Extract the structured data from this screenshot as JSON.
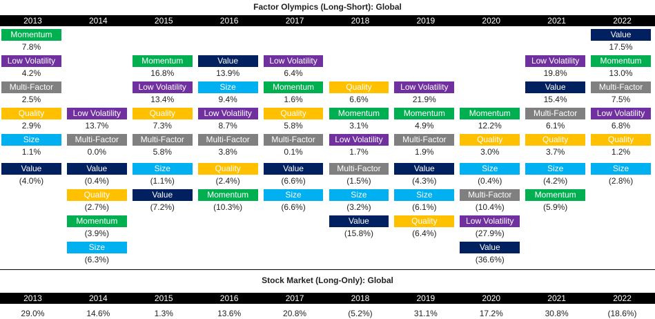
{
  "title": "Factor Olympics (Long-Short): Global",
  "market_title": "Stock Market (Long-Only): Global",
  "years": [
    "2013",
    "2014",
    "2015",
    "2016",
    "2017",
    "2018",
    "2019",
    "2020",
    "2021",
    "2022"
  ],
  "factor_colors": {
    "Momentum": "#00b050",
    "Low Volatility": "#7030a0",
    "Multi-Factor": "#808080",
    "Quality": "#ffc000",
    "Size": "#00b0f0",
    "Value": "#002060"
  },
  "chart_data": [
    {
      "type": "table",
      "title": "Factor Olympics (Long-Short): Global",
      "columns": [
        {
          "year": "2013",
          "entries": [
            {
              "factor": "Momentum",
              "value": "7.8%"
            },
            {
              "factor": "Low Volatility",
              "value": "4.2%"
            },
            {
              "factor": "Multi-Factor",
              "value": "2.5%"
            },
            {
              "factor": "Quality",
              "value": "2.9%"
            },
            {
              "factor": "Size",
              "value": "1.1%"
            },
            {
              "factor": "Value",
              "value": "(4.0%)"
            }
          ]
        },
        {
          "year": "2014",
          "entries": [
            {
              "factor": "Low Volatility",
              "value": "13.7%"
            },
            {
              "factor": "Multi-Factor",
              "value": "0.0%"
            },
            {
              "factor": "Value",
              "value": "(0.4%)"
            },
            {
              "factor": "Quality",
              "value": "(2.7%)"
            },
            {
              "factor": "Momentum",
              "value": "(3.9%)"
            },
            {
              "factor": "Size",
              "value": "(6.3%)"
            }
          ]
        },
        {
          "year": "2015",
          "entries": [
            {
              "factor": "Momentum",
              "value": "16.8%"
            },
            {
              "factor": "Low Volatility",
              "value": "13.4%"
            },
            {
              "factor": "Quality",
              "value": "7.3%"
            },
            {
              "factor": "Multi-Factor",
              "value": "5.8%"
            },
            {
              "factor": "Size",
              "value": "(1.1%)"
            },
            {
              "factor": "Value",
              "value": "(7.2%)"
            }
          ]
        },
        {
          "year": "2016",
          "entries": [
            {
              "factor": "Value",
              "value": "13.9%"
            },
            {
              "factor": "Size",
              "value": "9.4%"
            },
            {
              "factor": "Low Volatility",
              "value": "8.7%"
            },
            {
              "factor": "Multi-Factor",
              "value": "3.8%"
            },
            {
              "factor": "Quality",
              "value": "(2.4%)"
            },
            {
              "factor": "Momentum",
              "value": "(10.3%)"
            }
          ]
        },
        {
          "year": "2017",
          "entries": [
            {
              "factor": "Low Volatility",
              "value": "6.4%"
            },
            {
              "factor": "Momentum",
              "value": "1.6%"
            },
            {
              "factor": "Quality",
              "value": "5.8%"
            },
            {
              "factor": "Multi-Factor",
              "value": "0.1%"
            },
            {
              "factor": "Value",
              "value": "(6.6%)"
            },
            {
              "factor": "Size",
              "value": "(6.6%)"
            }
          ]
        },
        {
          "year": "2018",
          "entries": [
            {
              "factor": "Quality",
              "value": "6.6%"
            },
            {
              "factor": "Momentum",
              "value": "3.1%"
            },
            {
              "factor": "Low Volatility",
              "value": "1.7%"
            },
            {
              "factor": "Multi-Factor",
              "value": "(1.5%)"
            },
            {
              "factor": "Size",
              "value": "(3.2%)"
            },
            {
              "factor": "Value",
              "value": "(15.8%)"
            }
          ]
        },
        {
          "year": "2019",
          "entries": [
            {
              "factor": "Low Volatility",
              "value": "21.9%"
            },
            {
              "factor": "Momentum",
              "value": "4.9%"
            },
            {
              "factor": "Multi-Factor",
              "value": "1.9%"
            },
            {
              "factor": "Value",
              "value": "(4.3%)"
            },
            {
              "factor": "Size",
              "value": "(6.1%)"
            },
            {
              "factor": "Quality",
              "value": "(6.4%)"
            }
          ]
        },
        {
          "year": "2020",
          "entries": [
            {
              "factor": "Momentum",
              "value": "12.2%"
            },
            {
              "factor": "Quality",
              "value": "3.0%"
            },
            {
              "factor": "Size",
              "value": "(0.4%)"
            },
            {
              "factor": "Multi-Factor",
              "value": "(10.4%)"
            },
            {
              "factor": "Low Volatility",
              "value": "(27.9%)"
            },
            {
              "factor": "Value",
              "value": "(36.6%)"
            }
          ]
        },
        {
          "year": "2021",
          "entries": [
            {
              "factor": "Low Volatility",
              "value": "19.8%"
            },
            {
              "factor": "Value",
              "value": "15.4%"
            },
            {
              "factor": "Multi-Factor",
              "value": "6.1%"
            },
            {
              "factor": "Quality",
              "value": "3.7%"
            },
            {
              "factor": "Size",
              "value": "(4.2%)"
            },
            {
              "factor": "Momentum",
              "value": "(5.9%)"
            }
          ]
        },
        {
          "year": "2022",
          "entries": [
            {
              "factor": "Value",
              "value": "17.5%"
            },
            {
              "factor": "Momentum",
              "value": "13.0%"
            },
            {
              "factor": "Multi-Factor",
              "value": "7.5%"
            },
            {
              "factor": "Low Volatility",
              "value": "6.8%"
            },
            {
              "factor": "Quality",
              "value": "1.2%"
            },
            {
              "factor": "Size",
              "value": "(2.8%)"
            }
          ]
        }
      ]
    },
    {
      "type": "table",
      "title": "Stock Market (Long-Only): Global",
      "categories": [
        "2013",
        "2014",
        "2015",
        "2016",
        "2017",
        "2018",
        "2019",
        "2020",
        "2021",
        "2022"
      ],
      "values": [
        "29.0%",
        "14.6%",
        "1.3%",
        "13.6%",
        "20.8%",
        "(5.2%)",
        "31.1%",
        "17.2%",
        "30.8%",
        "(18.6%)"
      ]
    }
  ]
}
